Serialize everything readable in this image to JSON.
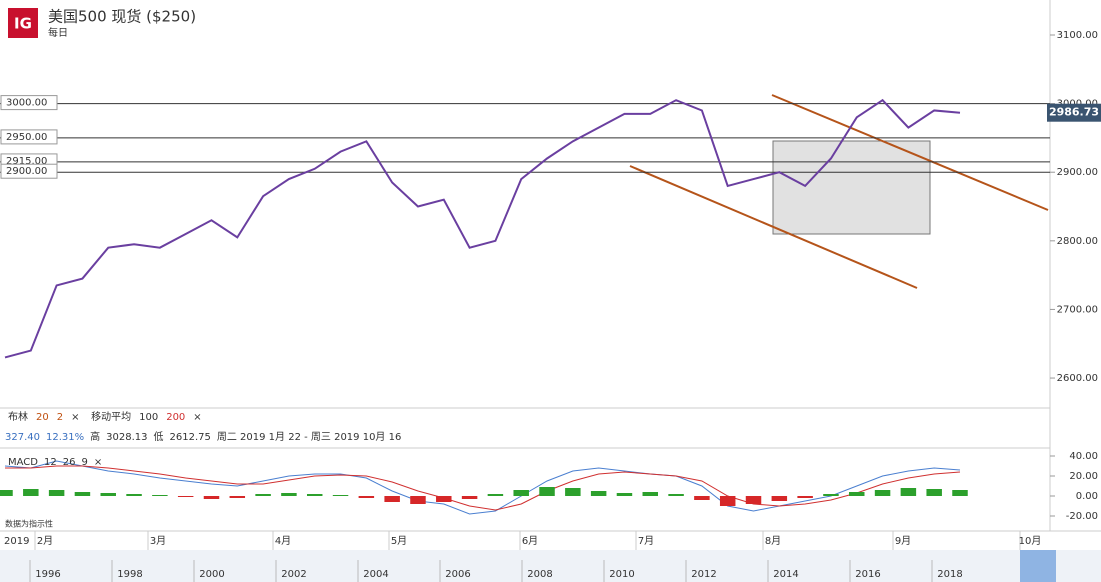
{
  "header": {
    "logo": "IG",
    "title": "美国500 现货 ($250)",
    "interval": "每日"
  },
  "indicators": {
    "bollinger": [
      "布林",
      "20",
      "2"
    ],
    "moving_average": [
      "移动平均",
      "100",
      "200"
    ],
    "stats": [
      "327.40",
      "12.31%",
      "高",
      "3028.13",
      "低",
      "2612.75",
      "周二 2019 1月 22 - 周三 2019 10月 16"
    ],
    "macd": [
      "MACD",
      "12",
      "26",
      "9"
    ],
    "note": "数据为指示性"
  },
  "time_axis": {
    "year": "2019",
    "months": [
      "2月",
      "3月",
      "4月",
      "5月",
      "6月",
      "7月",
      "8月",
      "9月",
      "10月"
    ],
    "navigator_years": [
      "1996",
      "1998",
      "2000",
      "2002",
      "2004",
      "2006",
      "2008",
      "2010",
      "2012",
      "2014",
      "2016",
      "2018"
    ]
  },
  "chart_data": [
    {
      "type": "line",
      "series": [
        {
          "name": "美国500 现货",
          "color": "#6a3fa0",
          "values": [
            2630,
            2640,
            2735,
            2745,
            2790,
            2795,
            2790,
            2810,
            2830,
            2805,
            2865,
            2890,
            2905,
            2930,
            2945,
            2885,
            2850,
            2860,
            2790,
            2800,
            2890,
            2920,
            2945,
            2965,
            2985,
            2985,
            3005,
            2990,
            2880,
            2890,
            2900,
            2880,
            2920,
            2980,
            3005,
            2965,
            2990,
            2986.73
          ]
        }
      ],
      "ylim": [
        2568,
        3151
      ],
      "yticks": [
        {
          "value": 2600,
          "label": "2600.00"
        },
        {
          "value": 2700,
          "label": "2700.00"
        },
        {
          "value": 2800,
          "label": "2800.00"
        },
        {
          "value": 2900,
          "label": "2900.00"
        },
        {
          "value": 3000,
          "label": "3000.00"
        },
        {
          "value": 3100,
          "label": "3100.00"
        }
      ],
      "levels": [
        {
          "value": 3000,
          "label": "3000.00"
        },
        {
          "value": 2950,
          "label": "2950.00"
        },
        {
          "value": 2915,
          "label": "2915.00"
        },
        {
          "value": 2900,
          "label": "2900.00"
        }
      ]
    },
    {
      "type": "macd",
      "series": [
        {
          "name": "MACD",
          "color": "#4a7fd0",
          "values": [
            30,
            28,
            35,
            30,
            25,
            22,
            18,
            15,
            12,
            10,
            15,
            20,
            22,
            22,
            18,
            5,
            -5,
            -8,
            -18,
            -15,
            0,
            15,
            25,
            28,
            25,
            22,
            20,
            10,
            -10,
            -15,
            -10,
            -5,
            0,
            10,
            20,
            25,
            28,
            26
          ]
        },
        {
          "name": "Signal",
          "color": "#d03030",
          "values": [
            28,
            28,
            30,
            30,
            28,
            25,
            22,
            18,
            15,
            12,
            12,
            16,
            20,
            21,
            20,
            14,
            5,
            -2,
            -10,
            -14,
            -8,
            5,
            15,
            22,
            24,
            22,
            20,
            15,
            0,
            -8,
            -10,
            -8,
            -4,
            3,
            12,
            18,
            22,
            24
          ]
        },
        {
          "name": "Histogram",
          "color": "#2ca02c",
          "negative_color": "#d62728",
          "values": [
            6,
            7,
            6,
            4,
            3,
            2,
            1,
            -1,
            -3,
            -2,
            2,
            3,
            2,
            1,
            -2,
            -6,
            -8,
            -6,
            -3,
            2,
            6,
            9,
            8,
            5,
            3,
            4,
            2,
            -4,
            -10,
            -8,
            -5,
            -2,
            2,
            4,
            6,
            8,
            7,
            6
          ]
        }
      ],
      "ylim": [
        -31,
        46
      ],
      "yticks": [
        {
          "value": 40,
          "label": "40.00"
        },
        {
          "value": 20,
          "label": "20.00"
        },
        {
          "value": 0,
          "label": "0.00"
        },
        {
          "value": -20,
          "label": "-20.00"
        }
      ]
    }
  ]
}
